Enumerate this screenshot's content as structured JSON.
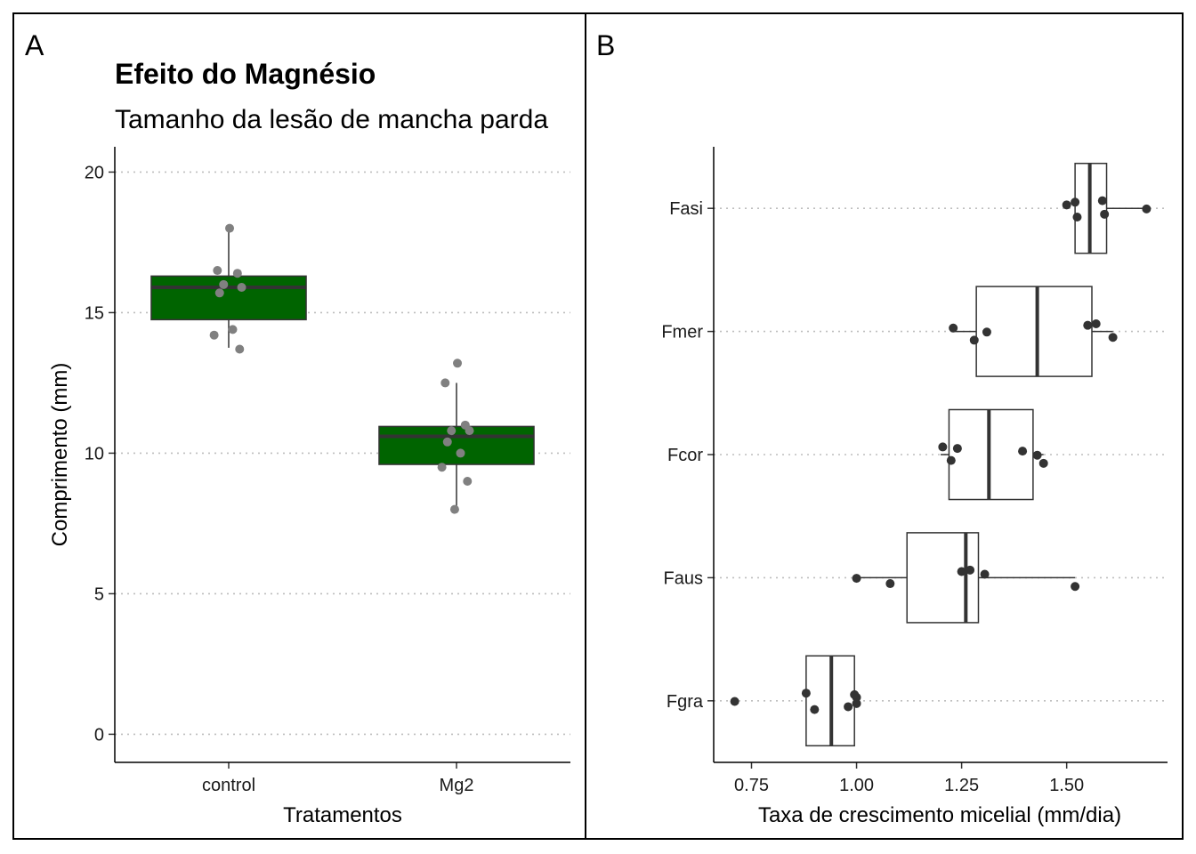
{
  "colors": {
    "box_fill_a": "#006400",
    "box_stroke_a": "#333333",
    "points_a": "#808080",
    "box_fill_b": "#ffffff",
    "box_stroke_b": "#333333",
    "points_b": "#333333",
    "grid": "#bebebe"
  },
  "chart_data": [
    {
      "type": "box",
      "tag": "A",
      "title": "Efeito do Magnésio",
      "subtitle": "Tamanho da lesão de mancha parda",
      "xlabel": "Tratamentos",
      "ylabel": "Comprimento (mm)",
      "orientation": "vertical",
      "ylim": [
        -1,
        20.9
      ],
      "yticks": [
        0,
        5,
        10,
        15,
        20
      ],
      "ytick_labels": [
        "0",
        "5",
        "10",
        "15",
        "20"
      ],
      "grid": "horizontal dotted",
      "categories": [
        "control",
        "Mg2"
      ],
      "boxes": [
        {
          "category": "control",
          "min": 13.75,
          "q1": 14.75,
          "median": 15.9,
          "q3": 16.3,
          "max": 18.0,
          "points": [
            18.0,
            16.5,
            16.4,
            16.0,
            15.9,
            15.7,
            14.4,
            14.2,
            13.7
          ]
        },
        {
          "category": "Mg2",
          "min": 8.0,
          "q1": 9.6,
          "median": 10.6,
          "q3": 10.95,
          "max": 12.5,
          "points": [
            13.2,
            12.5,
            11.0,
            10.8,
            10.8,
            10.4,
            10.0,
            9.5,
            9.0,
            8.0
          ]
        }
      ]
    },
    {
      "type": "box",
      "tag": "B",
      "xlabel": "Taxa de crescimento micelial (mm/dia)",
      "ylabel": "",
      "orientation": "horizontal",
      "xlim": [
        0.66,
        1.74
      ],
      "xticks": [
        0.75,
        1.0,
        1.25,
        1.5
      ],
      "xtick_labels": [
        "0.75",
        "1.00",
        "1.25",
        "1.50"
      ],
      "grid": "horizontal dotted",
      "categories": [
        "Fasi",
        "Fmer",
        "Fcor",
        "Faus",
        "Fgra"
      ],
      "boxes": [
        {
          "category": "Fasi",
          "min": 1.52,
          "q1": 1.52,
          "median": 1.555,
          "q3": 1.595,
          "max": 1.69,
          "points": [
            1.69,
            1.585,
            1.59,
            1.5,
            1.525,
            1.52
          ]
        },
        {
          "category": "Fmer",
          "min": 1.23,
          "q1": 1.285,
          "median": 1.43,
          "q3": 1.56,
          "max": 1.61,
          "points": [
            1.31,
            1.57,
            1.61,
            1.23,
            1.28,
            1.55
          ]
        },
        {
          "category": "Fcor",
          "min": 1.2,
          "q1": 1.22,
          "median": 1.315,
          "q3": 1.42,
          "max": 1.445,
          "points": [
            1.43,
            1.205,
            1.225,
            1.395,
            1.445,
            1.24
          ]
        },
        {
          "category": "Faus",
          "min": 1.0,
          "q1": 1.12,
          "median": 1.26,
          "q3": 1.29,
          "max": 1.52,
          "points": [
            1.0,
            1.27,
            1.08,
            1.305,
            1.52,
            1.25
          ]
        },
        {
          "category": "Fgra",
          "min": 0.88,
          "q1": 0.88,
          "median": 0.94,
          "q3": 0.995,
          "max": 1.0,
          "points": [
            0.71,
            0.88,
            0.98,
            1.0,
            0.9,
            0.995,
            1.0
          ]
        }
      ]
    }
  ]
}
